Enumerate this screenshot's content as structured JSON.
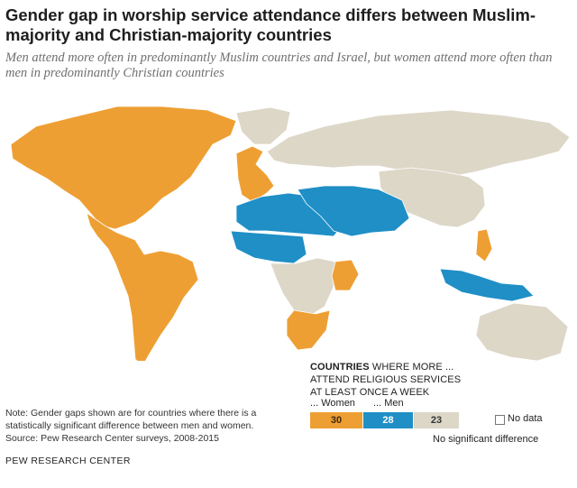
{
  "title": "Gender gap in worship service attendance differs between Muslim-majority and Christian-majority countries",
  "subtitle": "Men attend more often in predominantly Muslim countries and Israel, but women attend more often than men in predominantly Christian countries",
  "colors": {
    "women": "#ee9f33",
    "men": "#1f8fc6",
    "no_difference": "#ddd7c8",
    "no_data": "#ffffff",
    "border": "#ffffff"
  },
  "legend": {
    "heading_bold": "COUNTRIES",
    "heading_rest": " WHERE MORE ...",
    "heading_line2": "ATTEND RELIGIOUS SERVICES",
    "heading_line3": "AT LEAST ONCE A WEEK",
    "women_label": "... Women",
    "men_label": "... Men",
    "no_data_label": "No data",
    "no_difference_label": "No significant difference"
  },
  "chart_data": {
    "type": "choropleth",
    "categories": [
      "... Women",
      "... Men",
      "No significant difference"
    ],
    "values": [
      30,
      28,
      23
    ],
    "region_values": {
      "north-america": "women",
      "latin-america": "women",
      "western-europe": "women",
      "south-africa": "women",
      "kenya": "women",
      "philippines": "women",
      "north-africa": "men",
      "west-africa": "men",
      "middle-east": "men",
      "indonesia": "men",
      "russia": "no_difference",
      "china": "no_difference",
      "australia": "no_difference",
      "greenland": "no_difference",
      "central-africa": "no_difference"
    }
  },
  "note": {
    "line1": "Note: Gender gaps shown are for countries where there is a",
    "line2": "statistically significant difference between men and women.",
    "line3": "Source: Pew Research Center surveys, 2008-2015"
  },
  "brand": "PEW RESEARCH CENTER"
}
